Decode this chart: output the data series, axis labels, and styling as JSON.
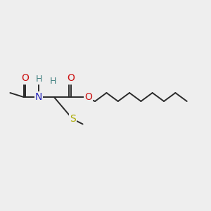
{
  "background_color": "#eeeeee",
  "bond_color": "#2a2a2a",
  "N_color": "#2222bb",
  "O_color": "#cc1111",
  "S_color": "#aaaa00",
  "H_color": "#408080",
  "label_color": "#2a2a2a",
  "text_fontsize": 10,
  "lw": 1.4,
  "xlim": [
    0.0,
    1.25
  ],
  "ylim": [
    0.25,
    0.85
  ]
}
